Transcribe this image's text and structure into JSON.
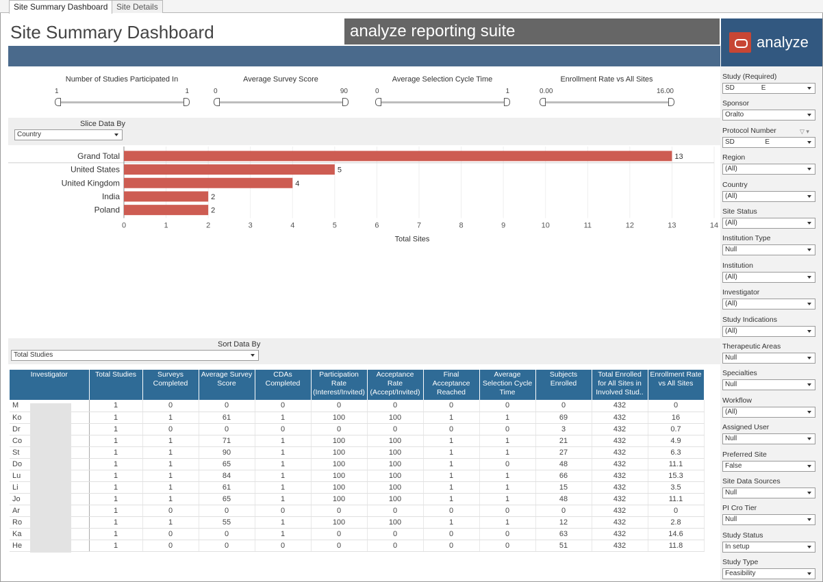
{
  "tabs": [
    "Site Summary Dashboard",
    "Site Details"
  ],
  "header": {
    "title": "Site Summary Dashboard",
    "suite": "analyze reporting suite",
    "logo_text": "analyze"
  },
  "sliders": [
    {
      "label": "Number of Studies Participated In",
      "min": "1",
      "max": "1"
    },
    {
      "label": "Average Survey Score",
      "min": "0",
      "max": "90"
    },
    {
      "label": "Average Selection Cycle Time",
      "min": "0",
      "max": "1"
    },
    {
      "label": "Enrollment Rate vs All Sites",
      "min": "0.00",
      "max": "16.00"
    }
  ],
  "slice": {
    "label": "Slice Data By",
    "value": "Country"
  },
  "sort": {
    "label": "Sort Data By",
    "value": "Total Studies"
  },
  "chart_data": {
    "type": "bar",
    "orientation": "horizontal",
    "categories": [
      "Grand Total",
      "United States",
      "United Kingdom",
      "India",
      "Poland"
    ],
    "values": [
      13,
      5,
      4,
      2,
      2
    ],
    "xlabel": "Total Sites",
    "xlim": [
      0,
      14
    ],
    "xticks": [
      "0",
      "1",
      "2",
      "3",
      "4",
      "5",
      "6",
      "7",
      "8",
      "9",
      "10",
      "11",
      "12",
      "13",
      "14"
    ],
    "color": "#cd5c52"
  },
  "table": {
    "headers": [
      "Investigator",
      "Total Studies",
      "Surveys Completed",
      "Average Survey Score",
      "CDAs Completed",
      "Participation Rate (Interest/Invited)",
      "Acceptance Rate (Accept/Invited)",
      "Final Acceptance Reached",
      "Average Selection Cycle Time",
      "Subjects Enrolled",
      "Total Enrolled for All Sites in Involved Stud..",
      "Enrollment Rate vs All Sites"
    ],
    "rows": [
      [
        "M",
        "1",
        "0",
        "0",
        "0",
        "0",
        "0",
        "0",
        "0",
        "0",
        "432",
        "0"
      ],
      [
        "Ko",
        "1",
        "1",
        "61",
        "1",
        "100",
        "100",
        "1",
        "1",
        "69",
        "432",
        "16"
      ],
      [
        "Dr",
        "1",
        "0",
        "0",
        "0",
        "0",
        "0",
        "0",
        "0",
        "3",
        "432",
        "0.7"
      ],
      [
        "Co",
        "1",
        "1",
        "71",
        "1",
        "100",
        "100",
        "1",
        "1",
        "21",
        "432",
        "4.9"
      ],
      [
        "St                  y",
        "1",
        "1",
        "90",
        "1",
        "100",
        "100",
        "1",
        "1",
        "27",
        "432",
        "6.3"
      ],
      [
        "Do",
        "1",
        "1",
        "65",
        "1",
        "100",
        "100",
        "1",
        "0",
        "48",
        "432",
        "11.1"
      ],
      [
        "Lu",
        "1",
        "1",
        "84",
        "1",
        "100",
        "100",
        "1",
        "1",
        "66",
        "432",
        "15.3"
      ],
      [
        "Li",
        "1",
        "1",
        "61",
        "1",
        "100",
        "100",
        "1",
        "1",
        "15",
        "432",
        "3.5"
      ],
      [
        "Jo",
        "1",
        "1",
        "65",
        "1",
        "100",
        "100",
        "1",
        "1",
        "48",
        "432",
        "11.1"
      ],
      [
        "Ar                 ajar..",
        "1",
        "0",
        "0",
        "0",
        "0",
        "0",
        "0",
        "0",
        "0",
        "432",
        "0"
      ],
      [
        "Ro",
        "1",
        "1",
        "55",
        "1",
        "100",
        "100",
        "1",
        "1",
        "12",
        "432",
        "2.8"
      ],
      [
        "Ka",
        "1",
        "0",
        "0",
        "1",
        "0",
        "0",
        "0",
        "0",
        "63",
        "432",
        "14.6"
      ],
      [
        "He",
        "1",
        "0",
        "0",
        "0",
        "0",
        "0",
        "0",
        "0",
        "51",
        "432",
        "11.8"
      ]
    ]
  },
  "filters": [
    {
      "label": "Study (Required)",
      "value": "SD              E"
    },
    {
      "label": "Sponsor",
      "value": "Oralto"
    },
    {
      "label": "Protocol Number",
      "value": "SD                E"
    },
    {
      "label": "Region",
      "value": "(All)"
    },
    {
      "label": "Country",
      "value": "(All)"
    },
    {
      "label": "Site Status",
      "value": "(All)"
    },
    {
      "label": "Institution Type",
      "value": "Null"
    },
    {
      "label": "Institution",
      "value": "(All)"
    },
    {
      "label": "Investigator",
      "value": "(All)"
    },
    {
      "label": "Study Indications",
      "value": "(All)"
    },
    {
      "label": "Therapeutic Areas",
      "value": "Null"
    },
    {
      "label": "Specialties",
      "value": "Null"
    },
    {
      "label": "Workflow",
      "value": "(All)"
    },
    {
      "label": "Assigned User",
      "value": "Null"
    },
    {
      "label": "Preferred Site",
      "value": "False"
    },
    {
      "label": "Site Data Sources",
      "value": "Null"
    },
    {
      "label": "PI Cro Tier",
      "value": "Null"
    },
    {
      "label": "Study Status",
      "value": "In setup"
    },
    {
      "label": "Study Type",
      "value": "Feasibility"
    }
  ]
}
